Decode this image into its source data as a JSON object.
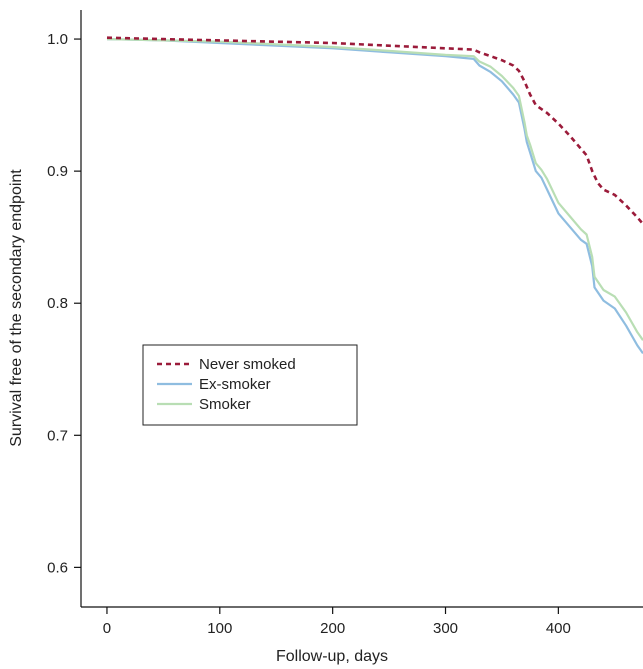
{
  "chart_data": {
    "type": "line",
    "title": "",
    "xlabel": "Follow-up, days",
    "ylabel": "Survival free of the secondary endpoint",
    "xlim": [
      -23,
      475
    ],
    "ylim": [
      0.57,
      1.022
    ],
    "xticks": [
      0,
      100,
      200,
      300,
      400
    ],
    "xtick_labels": [
      "0",
      "100",
      "200",
      "300",
      "400"
    ],
    "yticks": [
      0.6,
      0.7,
      0.8,
      0.9,
      1.0
    ],
    "ytick_labels": [
      "0.6",
      "0.7",
      "0.8",
      "0.9",
      "1.0"
    ],
    "grid": false,
    "legend_position": "center-left",
    "series": [
      {
        "name": "Never smoked",
        "color": "#9b1b3a",
        "dash": "dashed",
        "x": [
          0,
          50,
          100,
          150,
          200,
          250,
          300,
          325,
          330,
          340,
          350,
          360,
          365,
          370,
          375,
          380,
          390,
          400,
          410,
          420,
          425,
          430,
          435,
          440,
          450,
          460,
          470,
          475
        ],
        "y": [
          1.001,
          1.0,
          0.999,
          0.998,
          0.997,
          0.995,
          0.993,
          0.992,
          0.99,
          0.987,
          0.984,
          0.98,
          0.976,
          0.968,
          0.958,
          0.95,
          0.944,
          0.936,
          0.927,
          0.917,
          0.912,
          0.9,
          0.891,
          0.886,
          0.882,
          0.874,
          0.865,
          0.86
        ]
      },
      {
        "name": "Ex-smoker",
        "color": "#8fbde0",
        "dash": "solid",
        "x": [
          0,
          50,
          100,
          150,
          200,
          250,
          300,
          325,
          330,
          340,
          350,
          360,
          365,
          370,
          372,
          375,
          380,
          385,
          390,
          400,
          410,
          420,
          425,
          430,
          432,
          440,
          450,
          460,
          470,
          475
        ],
        "y": [
          1.0,
          0.999,
          0.997,
          0.995,
          0.993,
          0.99,
          0.987,
          0.985,
          0.98,
          0.975,
          0.968,
          0.958,
          0.952,
          0.932,
          0.922,
          0.914,
          0.9,
          0.895,
          0.886,
          0.868,
          0.858,
          0.848,
          0.845,
          0.828,
          0.812,
          0.802,
          0.796,
          0.783,
          0.768,
          0.762
        ]
      },
      {
        "name": "Smoker",
        "color": "#b9deb4",
        "dash": "solid",
        "x": [
          0,
          50,
          100,
          150,
          200,
          250,
          300,
          325,
          330,
          340,
          350,
          360,
          365,
          370,
          372,
          375,
          380,
          385,
          390,
          400,
          410,
          420,
          425,
          430,
          432,
          440,
          450,
          460,
          470,
          475
        ],
        "y": [
          1.0,
          0.999,
          0.998,
          0.996,
          0.994,
          0.991,
          0.988,
          0.987,
          0.983,
          0.979,
          0.972,
          0.963,
          0.957,
          0.937,
          0.927,
          0.92,
          0.906,
          0.901,
          0.894,
          0.876,
          0.866,
          0.856,
          0.852,
          0.835,
          0.82,
          0.81,
          0.805,
          0.793,
          0.778,
          0.772
        ]
      }
    ]
  }
}
